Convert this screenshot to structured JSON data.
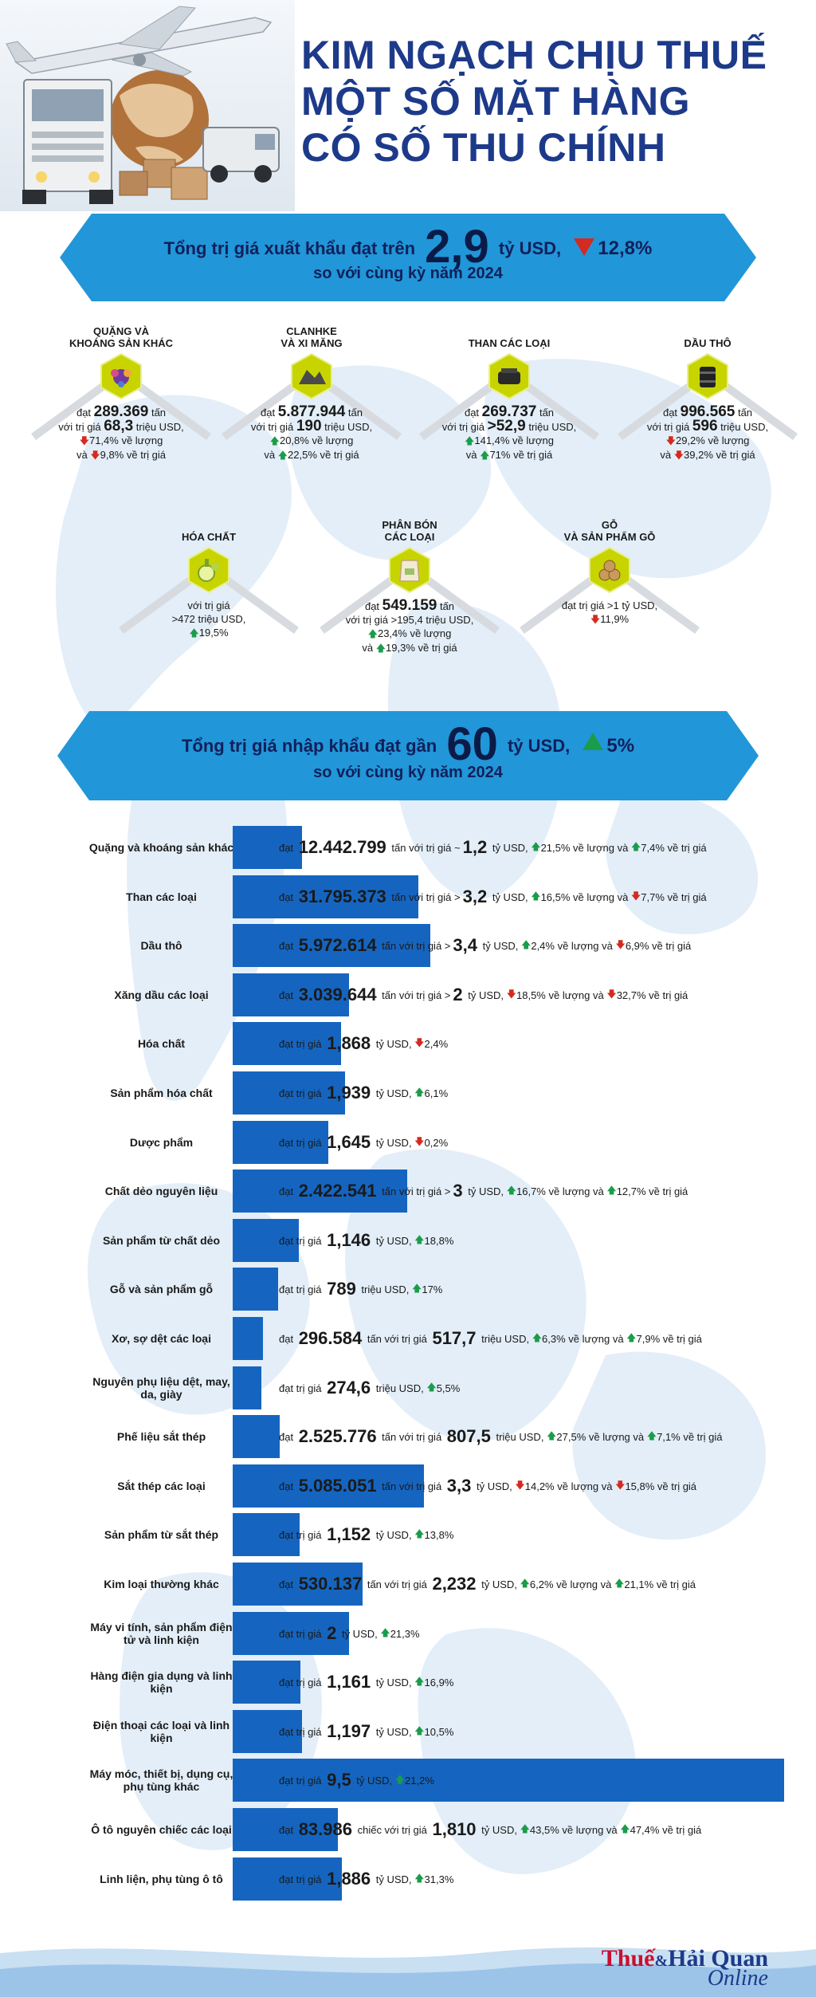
{
  "title": [
    "KIM NGẠCH CHỊU THUẾ",
    "MỘT SỐ MẶT HÀNG",
    "CÓ SỐ THU CHÍNH"
  ],
  "colors": {
    "title": "#1d3a8a",
    "banner": "#2196d8",
    "bar": "#1565c0",
    "up": "#1b9c4a",
    "down": "#d42a20"
  },
  "export_banner": {
    "pre": "Tổng trị giá xuất khẩu  đạt trên",
    "value": "2,9",
    "unit": "tỷ USD,",
    "change": "12,8%",
    "direction": "down",
    "line2": "so với cùng kỳ năm 2024"
  },
  "export_items": [
    {
      "title": [
        "QUẶNG VÀ",
        "KHOÁNG SẢN KHÁC"
      ],
      "icon": "ore-icon",
      "lines": [
        {
          "pre": "đạt ",
          "bold": "289.369",
          "post": " tấn"
        },
        {
          "pre": "với trị giá ",
          "bold": "68,3",
          "post": " triệu USD,"
        },
        {
          "dir": "down",
          "text": "71,4% về lượng"
        },
        {
          "pre": "và ",
          "dir": "down",
          "text": "9,8% về trị giá"
        }
      ]
    },
    {
      "title": [
        "CLANHKE",
        "VÀ XI MĂNG"
      ],
      "icon": "cement-icon",
      "lines": [
        {
          "pre": "đạt ",
          "bold": "5.877.944",
          "post": " tấn"
        },
        {
          "pre": "với trị giá ",
          "bold": "190",
          "post": " triệu USD,"
        },
        {
          "dir": "up",
          "text": "20,8% về lượng"
        },
        {
          "pre": "và ",
          "dir": "up",
          "text": "22,5% về trị giá"
        }
      ]
    },
    {
      "title": [
        "THAN CÁC LOẠI"
      ],
      "icon": "coal-icon",
      "lines": [
        {
          "pre": "đạt ",
          "bold": "269.737",
          "post": " tấn"
        },
        {
          "pre": "với trị giá ",
          "bold": ">52,9",
          "post": " triệu USD,"
        },
        {
          "dir": "up",
          "text": "141,4% về lượng"
        },
        {
          "pre": "và ",
          "dir": "up",
          "text": "71% về trị giá"
        }
      ]
    },
    {
      "title": [
        "DẦU THÔ"
      ],
      "icon": "oil-barrel-icon",
      "lines": [
        {
          "pre": "đạt ",
          "bold": "996.565",
          "post": " tấn"
        },
        {
          "pre": "với trị giá ",
          "bold": "596",
          "post": " triệu USD,"
        },
        {
          "dir": "down",
          "text": "29,2% về lượng"
        },
        {
          "pre": "và ",
          "dir": "down",
          "text": "39,2% về trị giá"
        }
      ]
    },
    {
      "title": [
        "HÓA CHẤT"
      ],
      "icon": "chemical-icon",
      "lines": [
        {
          "pre": "với trị giá"
        },
        {
          "pre": ">472 triệu USD,"
        },
        {
          "dir": "up",
          "text": "19,5%"
        }
      ]
    },
    {
      "title": [
        "PHÂN BÓN",
        "CÁC LOẠI"
      ],
      "icon": "fertilizer-icon",
      "lines": [
        {
          "pre": "đạt ",
          "bold": "549.159",
          "post": " tấn"
        },
        {
          "pre": "với trị giá >195,4 triệu USD,"
        },
        {
          "dir": "up",
          "text": "23,4% về lượng"
        },
        {
          "pre": "và ",
          "dir": "up",
          "text": "19,3% về trị giá"
        }
      ]
    },
    {
      "title": [
        "GỖ",
        "VÀ SẢN PHẨM GỖ"
      ],
      "icon": "wood-icon",
      "lines": [
        {
          "pre": "đạt trị giá >1 tỷ USD,"
        },
        {
          "dir": "down",
          "text": "11,9%"
        }
      ]
    }
  ],
  "import_banner": {
    "pre": "Tổng trị giá nhập khẩu  đạt gần",
    "value": "60",
    "unit": "tỷ USD,",
    "change": "5%",
    "direction": "up",
    "line2": "so với cùng kỳ năm 2024"
  },
  "import_rows": [
    {
      "label": "Quặng và khoáng sản khác",
      "value_bn": 1.2,
      "parts": [
        {
          "t": "đạt "
        },
        {
          "n": "12.442.799"
        },
        {
          "t": " tấn với trị giá ~"
        },
        {
          "n": "1,2"
        },
        {
          "t": " tỷ USD, "
        },
        {
          "d": "up",
          "t": "21,5% về lượng và "
        },
        {
          "d": "up",
          "t": "7,4% về trị giá"
        }
      ]
    },
    {
      "label": "Than các loại",
      "value_bn": 3.2,
      "parts": [
        {
          "t": "đạt "
        },
        {
          "n": "31.795.373"
        },
        {
          "t": " tấn với trị giá >"
        },
        {
          "n": "3,2"
        },
        {
          "t": " tỷ USD, "
        },
        {
          "d": "up",
          "t": "16,5% về lượng và "
        },
        {
          "d": "down",
          "t": "7,7% về trị giá"
        }
      ]
    },
    {
      "label": "Dầu thô",
      "value_bn": 3.4,
      "parts": [
        {
          "t": "đạt "
        },
        {
          "n": "5.972.614"
        },
        {
          "t": " tấn với trị giá >"
        },
        {
          "n": "3,4"
        },
        {
          "t": " tỷ USD, "
        },
        {
          "d": "up",
          "t": "2,4% về lượng và "
        },
        {
          "d": "down",
          "t": "6,9% về trị giá"
        }
      ]
    },
    {
      "label": "Xăng dầu các loại",
      "value_bn": 2.0,
      "parts": [
        {
          "t": "đạt "
        },
        {
          "n": "3.039.644"
        },
        {
          "t": " tấn với trị giá >"
        },
        {
          "n": "2"
        },
        {
          "t": " tỷ USD, "
        },
        {
          "d": "down",
          "t": "18,5% về lượng và "
        },
        {
          "d": "down",
          "t": "32,7% về trị giá"
        }
      ]
    },
    {
      "label": "Hóa chất",
      "value_bn": 1.868,
      "parts": [
        {
          "t": "đạt trị giá "
        },
        {
          "n": "1,868"
        },
        {
          "t": " tỷ USD, "
        },
        {
          "d": "down",
          "t": "2,4%"
        }
      ]
    },
    {
      "label": "Sản phẩm hóa chất",
      "value_bn": 1.939,
      "parts": [
        {
          "t": "đạt trị giá "
        },
        {
          "n": "1,939"
        },
        {
          "t": " tỷ USD, "
        },
        {
          "d": "up",
          "t": "6,1%"
        }
      ]
    },
    {
      "label": "Dược phẩm",
      "value_bn": 1.645,
      "parts": [
        {
          "t": "đạt trị giá "
        },
        {
          "n": "1,645"
        },
        {
          "t": " tỷ USD, "
        },
        {
          "d": "down",
          "t": "0,2%"
        }
      ]
    },
    {
      "label": "Chất dẻo nguyên liệu",
      "value_bn": 3.0,
      "parts": [
        {
          "t": "đạt "
        },
        {
          "n": "2.422.541"
        },
        {
          "t": " tấn với trị giá >"
        },
        {
          "n": "3"
        },
        {
          "t": " tỷ USD, "
        },
        {
          "d": "up",
          "t": "16,7% về lượng và "
        },
        {
          "d": "up",
          "t": "12,7% về trị giá"
        }
      ]
    },
    {
      "label": "Sản phẩm từ chất dẻo",
      "value_bn": 1.146,
      "parts": [
        {
          "t": "đạt trị giá "
        },
        {
          "n": "1,146"
        },
        {
          "t": " tỷ USD, "
        },
        {
          "d": "up",
          "t": "18,8%"
        }
      ]
    },
    {
      "label": "Gỗ và sản phẩm gỗ",
      "value_bn": 0.789,
      "parts": [
        {
          "t": "đạt trị giá "
        },
        {
          "n": "789"
        },
        {
          "t": " triệu USD, "
        },
        {
          "d": "up",
          "t": "17%"
        }
      ]
    },
    {
      "label": "Xơ, sợ dệt các loại",
      "value_bn": 0.5177,
      "parts": [
        {
          "t": "đạt "
        },
        {
          "n": "296.584"
        },
        {
          "t": " tấn với trị giá "
        },
        {
          "n": "517,7"
        },
        {
          "t": " triệu USD, "
        },
        {
          "d": "up",
          "t": "6,3% về lượng và "
        },
        {
          "d": "up",
          "t": "7,9% về trị giá"
        }
      ]
    },
    {
      "label": "Nguyên phụ liệu dệt, may, da, giày",
      "value_bn": 0.2746,
      "parts": [
        {
          "t": "đạt trị giá "
        },
        {
          "n": "274,6"
        },
        {
          "t": " triệu USD, "
        },
        {
          "d": "up",
          "t": "5,5%"
        }
      ]
    },
    {
      "label": "Phế liệu sắt thép",
      "value_bn": 0.8075,
      "parts": [
        {
          "t": "đạt "
        },
        {
          "n": "2.525.776"
        },
        {
          "t": " tấn với trị giá "
        },
        {
          "n": "807,5"
        },
        {
          "t": " triệu USD, "
        },
        {
          "d": "up",
          "t": "27,5% về lượng và "
        },
        {
          "d": "up",
          "t": "7,1% về trị giá"
        }
      ]
    },
    {
      "label": "Sắt thép các loại",
      "value_bn": 3.3,
      "parts": [
        {
          "t": "đạt "
        },
        {
          "n": "5.085.051"
        },
        {
          "t": " tấn với trị giá "
        },
        {
          "n": "3,3"
        },
        {
          "t": " tỷ USD, "
        },
        {
          "d": "down",
          "t": "14,2% về lượng và "
        },
        {
          "d": "down",
          "t": "15,8% về trị giá"
        }
      ]
    },
    {
      "label": "Sản phẩm từ sắt thép",
      "value_bn": 1.152,
      "parts": [
        {
          "t": "đạt trị giá "
        },
        {
          "n": "1,152"
        },
        {
          "t": " tỷ USD, "
        },
        {
          "d": "up",
          "t": "13,8%"
        }
      ]
    },
    {
      "label": "Kim loại thường khác",
      "value_bn": 2.232,
      "parts": [
        {
          "t": "đạt "
        },
        {
          "n": "530.137"
        },
        {
          "t": " tấn với trị giá "
        },
        {
          "n": "2,232"
        },
        {
          "t": " tỷ USD, "
        },
        {
          "d": "up",
          "t": "6,2% về lượng và "
        },
        {
          "d": "up",
          "t": "21,1% về trị giá"
        }
      ]
    },
    {
      "label": "Máy vi tính, sản phẩm điện tử và linh kiện",
      "value_bn": 2.0,
      "parts": [
        {
          "t": "đạt trị giá "
        },
        {
          "n": "2"
        },
        {
          "t": " tỷ USD, "
        },
        {
          "d": "up",
          "t": "21,3%"
        }
      ]
    },
    {
      "label": "Hàng điện gia dụng và linh kiện",
      "value_bn": 1.161,
      "parts": [
        {
          "t": "đạt trị giá "
        },
        {
          "n": "1,161"
        },
        {
          "t": " tỷ USD, "
        },
        {
          "d": "up",
          "t": "16,9%"
        }
      ]
    },
    {
      "label": "Điện thoại các loại và linh kiện",
      "value_bn": 1.197,
      "parts": [
        {
          "t": "đạt trị giá "
        },
        {
          "n": "1,197"
        },
        {
          "t": " tỷ USD, "
        },
        {
          "d": "up",
          "t": "10,5%"
        }
      ]
    },
    {
      "label": "Máy móc, thiết bị, dụng cụ, phụ tùng khác",
      "value_bn": 9.5,
      "parts": [
        {
          "t": "đạt trị giá "
        },
        {
          "n": "9,5"
        },
        {
          "t": " tỷ USD, "
        },
        {
          "d": "up",
          "t": "21,2%"
        }
      ]
    },
    {
      "label": "Ô tô nguyên chiếc các loại",
      "value_bn": 1.81,
      "parts": [
        {
          "t": "đạt "
        },
        {
          "n": "83.986"
        },
        {
          "t": " chiếc với trị giá "
        },
        {
          "n": "1,810"
        },
        {
          "t": " tỷ USD, "
        },
        {
          "d": "up",
          "t": "43,5% về lượng và "
        },
        {
          "d": "up",
          "t": "47,4% về trị giá"
        }
      ]
    },
    {
      "label": "Linh liện, phụ tùng ô tô",
      "value_bn": 1.886,
      "parts": [
        {
          "t": "đạt trị giá "
        },
        {
          "n": "1,886"
        },
        {
          "t": " tỷ USD, "
        },
        {
          "d": "up",
          "t": "31,3%"
        }
      ]
    }
  ],
  "logo": {
    "main_left": "Thuế",
    "amp": "&",
    "main_right": "Hải Quan",
    "sub": "Online"
  }
}
